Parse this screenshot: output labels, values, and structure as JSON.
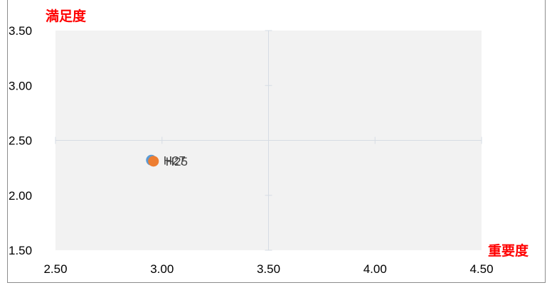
{
  "chart_data": {
    "type": "scatter",
    "title": "",
    "xlabel": "重要度",
    "ylabel": "満足度",
    "xlim": [
      2.5,
      4.5
    ],
    "ylim": [
      1.5,
      3.5
    ],
    "x_ticks": [
      "2.50",
      "3.00",
      "3.50",
      "4.00",
      "4.50"
    ],
    "y_ticks": [
      "3.50",
      "3.00",
      "2.50",
      "2.00",
      "1.50"
    ],
    "quadrant_lines": {
      "x": 3.5,
      "y": 2.5
    },
    "plot_background": "#f2f2f2",
    "series": [
      {
        "name": "H27",
        "x": 2.95,
        "y": 2.32,
        "color": "#5b9bd5"
      },
      {
        "name": "H25",
        "x": 2.96,
        "y": 2.31,
        "color": "#ed7d31"
      }
    ]
  }
}
